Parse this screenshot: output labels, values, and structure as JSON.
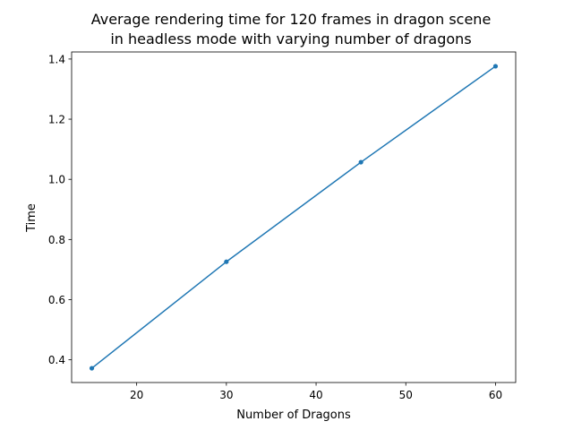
{
  "chart_data": {
    "type": "line",
    "title": [
      "Average rendering time for 120 frames in dragon scene",
      "in headless mode with varying number of dragons"
    ],
    "xlabel": "Number of Dragons",
    "ylabel": "Time",
    "xlim": [
      12.75,
      62.25
    ],
    "ylim": [
      0.3245,
      1.4235
    ],
    "xticks": [
      20,
      30,
      40,
      50,
      60
    ],
    "xtick_labels": [
      "20",
      "30",
      "40",
      "50",
      "60"
    ],
    "yticks": [
      0.4,
      0.6,
      0.8,
      1.0,
      1.2,
      1.4
    ],
    "ytick_labels": [
      "0.4",
      "0.6",
      "0.8",
      "1.0",
      "1.2",
      "1.4"
    ],
    "grid": false,
    "series": [
      {
        "x": [
          15,
          30,
          45,
          60
        ],
        "values": [
          0.372,
          0.726,
          1.057,
          1.376
        ],
        "color": "#1f77b4",
        "marker": "circle"
      }
    ]
  }
}
